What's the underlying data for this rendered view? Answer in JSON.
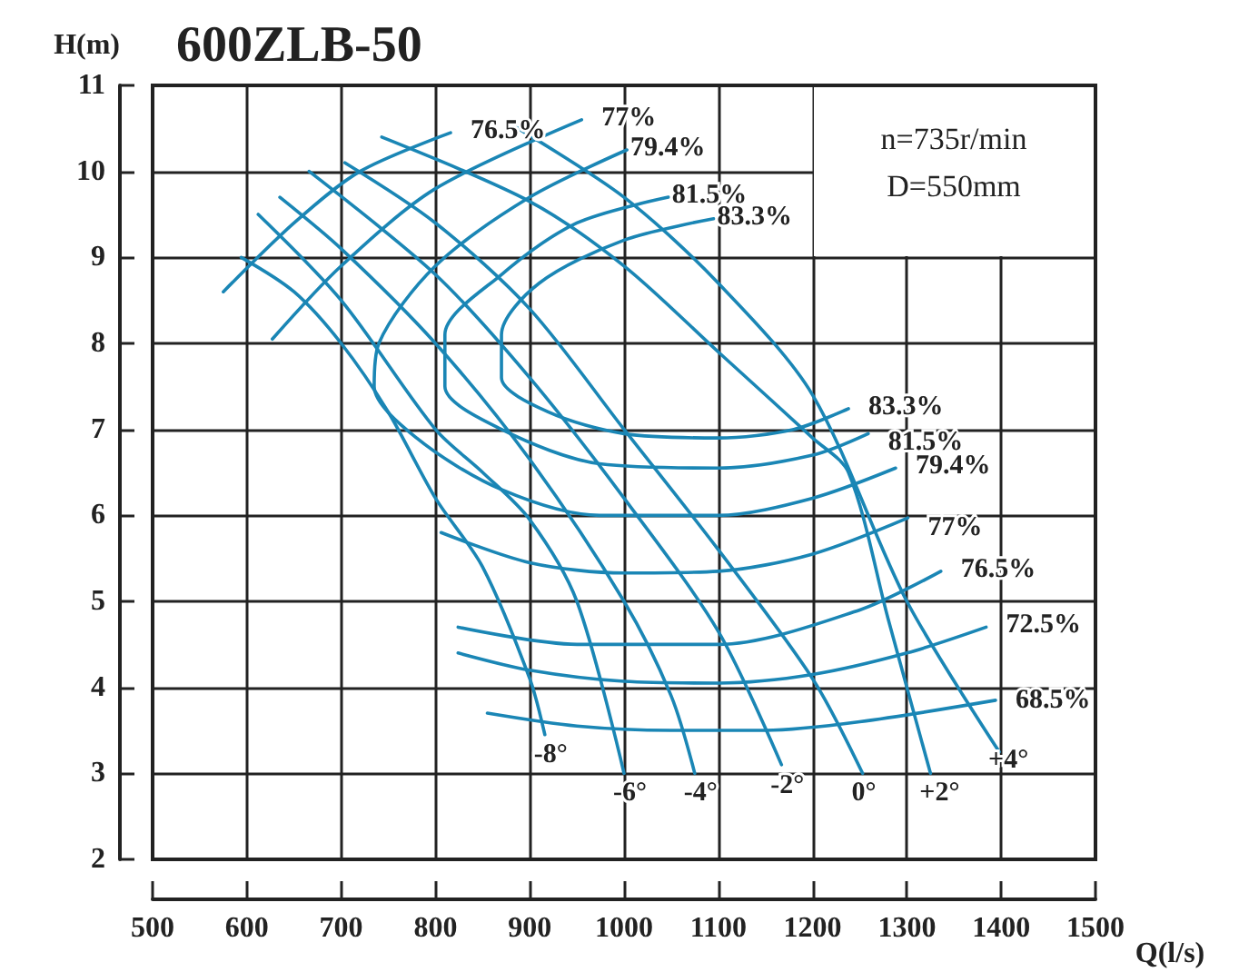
{
  "chart_data": {
    "type": "line",
    "title": "600ZLB-50",
    "xlabel": "Q(l/s)",
    "ylabel": "H(m)",
    "xlim": [
      500,
      1500
    ],
    "xticks": [
      500,
      600,
      700,
      800,
      900,
      1000,
      1100,
      1200,
      1300,
      1400,
      1500
    ],
    "ylim": [
      2,
      11
    ],
    "yticks": [
      2,
      3,
      4,
      5,
      6,
      7,
      8,
      9,
      10,
      11
    ],
    "grid": true,
    "marker": "none",
    "line_style": "solid",
    "annotations": [
      "n=735r/min",
      "D=550mm",
      {
        "text": "79.4%",
        "x": 1003,
        "y": 10.25
      },
      {
        "text": "81.5%",
        "x": 1047,
        "y": 9.7
      },
      {
        "text": "83.3%",
        "x": 1095,
        "y": 9.45
      }
    ],
    "series": [
      {
        "name": "-8°",
        "color": "#1a86b5",
        "x": [
          594,
          650,
          700,
          750,
          800,
          850,
          900,
          916
        ],
        "values": [
          9.0,
          8.6,
          8.0,
          7.2,
          6.2,
          5.4,
          4.1,
          3.45
        ]
      },
      {
        "name": "-6°",
        "color": "#1a86b5",
        "x": [
          612,
          700,
          800,
          850,
          900,
          950,
          1000
        ],
        "values": [
          9.5,
          8.5,
          7.0,
          6.5,
          5.95,
          5.0,
          3.0
        ]
      },
      {
        "name": "-4°",
        "color": "#1a86b5",
        "x": [
          635,
          700,
          800,
          900,
          1000,
          1050,
          1075
        ],
        "values": [
          9.7,
          9.1,
          8.0,
          6.65,
          5.0,
          3.9,
          3.0
        ]
      },
      {
        "name": "-2°",
        "color": "#1a86b5",
        "x": [
          666,
          800,
          900,
          1000,
          1100,
          1167
        ],
        "values": [
          10.0,
          8.8,
          7.6,
          6.2,
          4.65,
          3.1
        ]
      },
      {
        "name": "0°",
        "color": "#1a86b5",
        "x": [
          704,
          800,
          900,
          1000,
          1100,
          1200,
          1253
        ],
        "values": [
          10.1,
          9.4,
          8.4,
          7.0,
          5.6,
          4.1,
          3.0
        ]
      },
      {
        "name": "+2°",
        "color": "#1a86b5",
        "x": [
          743,
          900,
          1000,
          1100,
          1200,
          1238,
          1280,
          1325
        ],
        "values": [
          10.4,
          9.65,
          8.9,
          7.9,
          6.9,
          6.5,
          4.8,
          3.0
        ]
      },
      {
        "name": "+4°",
        "color": "#1a86b5",
        "x": [
          880,
          1000,
          1100,
          1200,
          1300,
          1398
        ],
        "values": [
          10.55,
          9.7,
          8.7,
          7.4,
          5.0,
          3.25
        ]
      },
      {
        "name": "76.5%",
        "color": "#1a86b5",
        "x": [
          575,
          650,
          720,
          816
        ],
        "values": [
          8.6,
          9.4,
          10.0,
          10.45
        ]
      },
      {
        "name": "76.5%",
        "color": "#1a86b5",
        "x": [
          824,
          950,
          1100,
          1250,
          1336
        ],
        "values": [
          4.7,
          4.5,
          4.5,
          4.9,
          5.35
        ]
      },
      {
        "name": "77%",
        "color": "#1a86b5",
        "x": [
          627,
          700,
          800,
          955
        ],
        "values": [
          8.05,
          8.9,
          9.8,
          10.6
        ]
      },
      {
        "name": "77%",
        "color": "#1a86b5",
        "x": [
          806,
          900,
          1000,
          1100,
          1200,
          1301
        ],
        "values": [
          5.8,
          5.45,
          5.33,
          5.35,
          5.55,
          5.97
        ]
      },
      {
        "name": "79.4%",
        "color": "#1a86b5",
        "x": [
          1003,
          900,
          800,
          740,
          735,
          780,
          870,
          974,
          1100,
          1200,
          1288
        ],
        "values": [
          10.25,
          9.7,
          8.9,
          8.0,
          7.5,
          6.9,
          6.3,
          6.0,
          6.0,
          6.2,
          6.55
        ]
      },
      {
        "name": "81.5%",
        "color": "#1a86b5",
        "x": [
          1047,
          950,
          870,
          810,
          810,
          870,
          974,
          1100,
          1200,
          1259
        ],
        "values": [
          9.7,
          9.4,
          8.8,
          8.1,
          7.5,
          7.0,
          6.6,
          6.55,
          6.7,
          6.95
        ]
      },
      {
        "name": "83.3%",
        "color": "#1a86b5",
        "x": [
          1095,
          1000,
          910,
          870,
          870,
          920,
          1000,
          1100,
          1180,
          1238
        ],
        "values": [
          9.45,
          9.2,
          8.7,
          8.1,
          7.6,
          7.2,
          6.95,
          6.9,
          7.0,
          7.24
        ]
      },
      {
        "name": "72.5%",
        "color": "#1a86b5",
        "x": [
          824,
          900,
          1000,
          1100,
          1200,
          1300,
          1384
        ],
        "values": [
          4.4,
          4.2,
          4.07,
          4.05,
          4.15,
          4.4,
          4.7
        ]
      },
      {
        "name": "68.5%",
        "color": "#1a86b5",
        "x": [
          855,
          950,
          1050,
          1150,
          1250,
          1394
        ],
        "values": [
          3.7,
          3.55,
          3.5,
          3.5,
          3.6,
          3.85
        ]
      }
    ]
  }
}
